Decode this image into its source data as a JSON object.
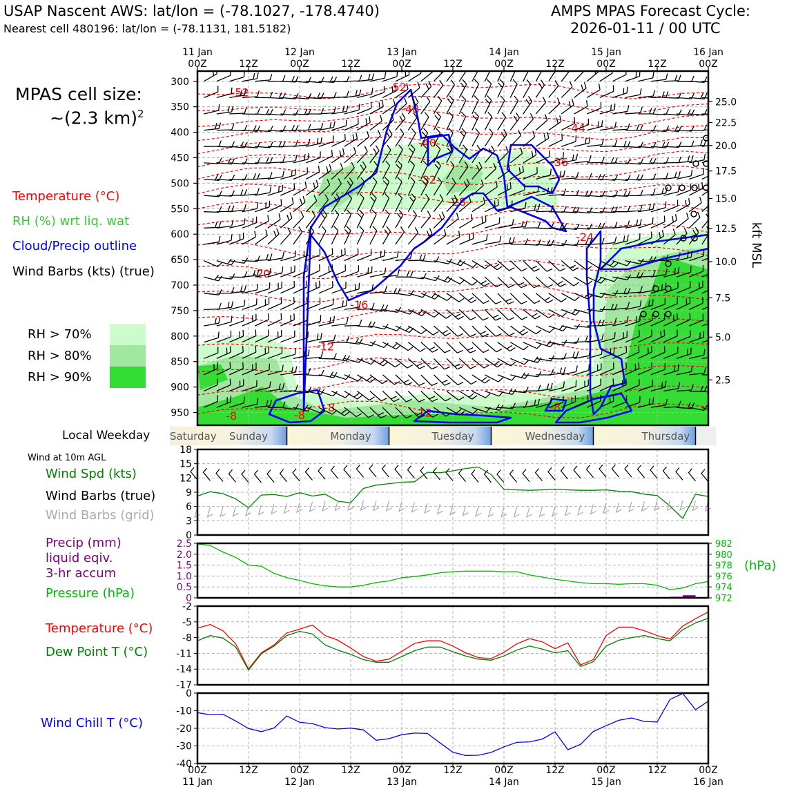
{
  "header": {
    "title_left": "USAP Nascent AWS: lat/lon = (-78.1027, -178.4740)",
    "subtitle_left": "Nearest cell 480196: lat/lon = (-78.1131, 181.5182)",
    "title_right": "AMPS MPAS Forecast Cycle:",
    "subtitle_right": "2026-01-11 / 00 UTC"
  },
  "cell_size": {
    "label": "MPAS cell size:",
    "value": "~(2.3 km)",
    "exponent": "2"
  },
  "legend": {
    "temperature": "Temperature (°C)",
    "rh": "RH (%) wrt liq. wat",
    "cloud": "Cloud/Precip outline",
    "barbs": "Wind Barbs (kts) (true)"
  },
  "rh_key": [
    {
      "label": "RH > 70%",
      "color": "#ccfccc"
    },
    {
      "label": "RH > 80%",
      "color": "#a0e8a0"
    },
    {
      "label": "RH > 90%",
      "color": "#33dd33"
    }
  ],
  "colors": {
    "temperature": "#ff0000",
    "rh": "#33cc33",
    "cloud": "#0000ff",
    "wind_speed": "#008000",
    "precip": "#800080",
    "pressure": "#00bb00",
    "dew_point": "#008000",
    "wind_chill": "#0000ff",
    "grid_barbs": "#aaaaaa"
  },
  "weekday_bar": {
    "label": "Local Weekday",
    "days": [
      "Saturday",
      "Sunday",
      "Monday",
      "Tuesday",
      "Wednesday",
      "Thursday"
    ]
  },
  "panels": {
    "wind_label_small": "Wind at 10m AGL",
    "wind_speed_label": "Wind Spd (kts)",
    "wind_barbs_label": "Wind Barbs (true)",
    "wind_barbs_grid_label": "Wind Barbs (grid)",
    "precip_label_1": "Precip (mm)",
    "precip_label_2": "liquid eqiv.",
    "precip_label_3": "3-hr accum",
    "pressure_label": "Pressure (hPa)",
    "pressure_unit": "(hPa)",
    "temp_label": "Temperature (°C)",
    "dewpoint_label": "Dew Point T (°C)",
    "windchill_label": "Wind Chill T (°C)",
    "right_axis_label": "kft MSL"
  },
  "chart_data": {
    "type": "line",
    "time_axis": {
      "top_ticks": [
        {
          "l1": "11 Jan",
          "l2": "00Z"
        },
        {
          "l1": "",
          "l2": "12Z"
        },
        {
          "l1": "12 Jan",
          "l2": "00Z"
        },
        {
          "l1": "",
          "l2": "12Z"
        },
        {
          "l1": "13 Jan",
          "l2": "00Z"
        },
        {
          "l1": "",
          "l2": "12Z"
        },
        {
          "l1": "14 Jan",
          "l2": "00Z"
        },
        {
          "l1": "",
          "l2": "12Z"
        },
        {
          "l1": "15 Jan",
          "l2": "00Z"
        },
        {
          "l1": "",
          "l2": "12Z"
        },
        {
          "l1": "16 Jan",
          "l2": "00Z"
        }
      ],
      "bottom_ticks": [
        {
          "l1": "00Z",
          "l2": "11 Jan"
        },
        {
          "l1": "12Z",
          "l2": ""
        },
        {
          "l1": "00Z",
          "l2": "12 Jan"
        },
        {
          "l1": "12Z",
          "l2": ""
        },
        {
          "l1": "00Z",
          "l2": "13 Jan"
        },
        {
          "l1": "12Z",
          "l2": ""
        },
        {
          "l1": "00Z",
          "l2": "14 Jan"
        },
        {
          "l1": "12Z",
          "l2": ""
        },
        {
          "l1": "00Z",
          "l2": "15 Jan"
        },
        {
          "l1": "12Z",
          "l2": ""
        },
        {
          "l1": "00Z",
          "l2": "16 Jan"
        }
      ],
      "range_hours": [
        0,
        120
      ]
    },
    "profile": {
      "pressure_ticks": [
        300,
        350,
        400,
        450,
        500,
        550,
        600,
        650,
        700,
        750,
        800,
        850,
        900,
        950
      ],
      "pressure_range_hpa": [
        280,
        975
      ],
      "height_ticks": [
        {
          "p": 340,
          "label": "25.0"
        },
        {
          "p": 381,
          "label": "22.5"
        },
        {
          "p": 426,
          "label": "20.0"
        },
        {
          "p": 476,
          "label": "17.5"
        },
        {
          "p": 530,
          "label": "15.0"
        },
        {
          "p": 589,
          "label": "12.5"
        },
        {
          "p": 654,
          "label": "10.0"
        },
        {
          "p": 725,
          "label": "7.5"
        },
        {
          "p": 802,
          "label": "5.0"
        },
        {
          "p": 886,
          "label": "2.5"
        }
      ],
      "isotherms": [
        {
          "label": "-52",
          "h": 10,
          "p": 321
        },
        {
          "label": "-52",
          "h": 47,
          "p": 311
        },
        {
          "label": "-48",
          "h": 50,
          "p": 354
        },
        {
          "label": "-44",
          "h": 89,
          "p": 391
        },
        {
          "label": "-40",
          "h": 54,
          "p": 420
        },
        {
          "label": "-36",
          "h": 85,
          "p": 458
        },
        {
          "label": "-32",
          "h": 54,
          "p": 493
        },
        {
          "label": "-28",
          "h": 61,
          "p": 536
        },
        {
          "label": "-24",
          "h": 91,
          "p": 605
        },
        {
          "label": "-20",
          "h": 15,
          "p": 677
        },
        {
          "label": "-16",
          "h": 38,
          "p": 738
        },
        {
          "label": "-12",
          "h": 30,
          "p": 820
        },
        {
          "label": "-8",
          "h": 8,
          "p": 956
        },
        {
          "label": "-8",
          "h": 24,
          "p": 955
        },
        {
          "label": "-8",
          "h": 31,
          "p": 940
        },
        {
          "label": "-12",
          "h": 53,
          "p": 950
        },
        {
          "label": "-8",
          "h": 84,
          "p": 939
        }
      ]
    },
    "wind_speed": {
      "ylim": [
        0,
        18
      ],
      "yticks": [
        0,
        3,
        6,
        9,
        12,
        15,
        18
      ],
      "hours": [
        0,
        3,
        6,
        9,
        12,
        15,
        18,
        21,
        24,
        27,
        30,
        33,
        36,
        39,
        42,
        45,
        48,
        51,
        54,
        57,
        60,
        63,
        66,
        69,
        72,
        75,
        78,
        81,
        84,
        87,
        90,
        93,
        96,
        99,
        102,
        105,
        108,
        111,
        114,
        117,
        120
      ],
      "values": [
        8.2,
        9.1,
        8.7,
        7.6,
        5.7,
        8.4,
        8.5,
        8.1,
        8.9,
        8.2,
        8.6,
        7.1,
        6.8,
        9.8,
        10.5,
        10.8,
        11.1,
        11.2,
        13.2,
        13.1,
        13.5,
        14.0,
        14.3,
        12.7,
        9.6,
        9.5,
        9.4,
        9.5,
        9.6,
        9.5,
        9.4,
        9.4,
        9.5,
        9.2,
        9.1,
        8.6,
        8.3,
        6.1,
        3.5,
        8.6,
        8.1
      ]
    },
    "precip_pressure": {
      "precip_ylim": [
        0,
        2.5
      ],
      "precip_yticks": [
        0,
        0.5,
        1.0,
        1.5,
        2.0,
        2.5
      ],
      "precip_bars": [
        {
          "h": 114,
          "v": 0.05
        },
        {
          "h": 117,
          "v": 0.12
        }
      ],
      "pressure_ylim": [
        972,
        982
      ],
      "pressure_yticks": [
        972,
        974,
        976,
        978,
        980,
        982
      ],
      "pressure_values": [
        981.9,
        981.6,
        980.4,
        979.4,
        978.0,
        977.8,
        976.5,
        975.7,
        975.2,
        974.6,
        974.2,
        974.0,
        974.0,
        974.3,
        974.8,
        975.1,
        975.7,
        975.9,
        976.2,
        976.6,
        976.8,
        976.9,
        976.9,
        976.9,
        976.8,
        976.8,
        976.2,
        975.8,
        975.4,
        975.1,
        974.8,
        974.6,
        974.6,
        974.5,
        974.6,
        974.6,
        974.3,
        973.5,
        973.8,
        974.6,
        975.0
      ]
    },
    "temperature": {
      "ylim": [
        -17,
        -2
      ],
      "yticks": [
        -2,
        -5,
        -8,
        -11,
        -14,
        -17
      ],
      "temp_values": [
        -6.2,
        -5.5,
        -6.7,
        -9.2,
        -14.0,
        -10.9,
        -9.4,
        -7.1,
        -6.4,
        -5.6,
        -7.6,
        -8.5,
        -10.0,
        -11.6,
        -12.5,
        -12.1,
        -10.6,
        -9.1,
        -8.6,
        -8.6,
        -9.6,
        -10.9,
        -11.8,
        -12.0,
        -10.8,
        -9.2,
        -8.2,
        -8.8,
        -10.1,
        -9.0,
        -13.2,
        -12.2,
        -7.6,
        -6.0,
        -6.0,
        -6.7,
        -7.6,
        -8.3,
        -5.8,
        -4.4,
        -3.1
      ],
      "dew_values": [
        -8.6,
        -7.6,
        -8.1,
        -9.8,
        -14.2,
        -11.1,
        -9.6,
        -7.6,
        -6.8,
        -7.3,
        -9.4,
        -10.4,
        -11.2,
        -12.2,
        -12.7,
        -12.7,
        -11.6,
        -10.5,
        -9.8,
        -9.8,
        -10.7,
        -11.5,
        -12.1,
        -12.3,
        -11.5,
        -10.4,
        -9.6,
        -10.2,
        -10.9,
        -10.5,
        -13.5,
        -12.6,
        -9.6,
        -8.5,
        -8.0,
        -7.6,
        -8.2,
        -8.6,
        -6.5,
        -5.2,
        -4.3
      ]
    },
    "wind_chill": {
      "ylim": [
        -40,
        0
      ],
      "yticks": [
        0,
        -10,
        -20,
        -30,
        -40
      ],
      "values": [
        -11.1,
        -12.3,
        -12.0,
        -15.9,
        -20.1,
        -21.9,
        -19.8,
        -13.0,
        -16.6,
        -17.3,
        -19.6,
        -20.4,
        -19.9,
        -20.9,
        -26.8,
        -25.9,
        -23.6,
        -22.7,
        -22.9,
        -28.3,
        -33.6,
        -35.4,
        -35.3,
        -33.7,
        -30.5,
        -28.0,
        -27.7,
        -26.1,
        -22.0,
        -32.1,
        -29.1,
        -21.8,
        -18.5,
        -15.4,
        -14.1,
        -16.1,
        -16.4,
        -3.6,
        -0.2,
        -9.4,
        -4.6
      ]
    }
  }
}
